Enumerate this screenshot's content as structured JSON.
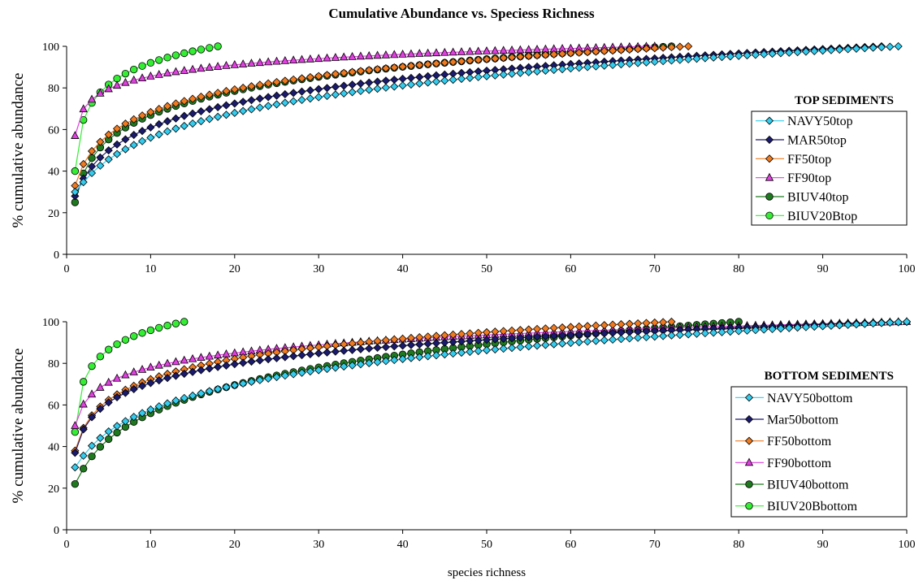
{
  "title": "Cumulative Abundance vs. Speciess Richness",
  "colors": {
    "navy": "#33ccee",
    "mar": "#1a1a6e",
    "ff50": "#f07a20",
    "ff90": "#e040e0",
    "biuv40": "#1f7a1f",
    "biuv20b": "#33ee33"
  },
  "chart_data": [
    {
      "type": "line",
      "panel": "top",
      "ylabel": "% cumulative abundance",
      "xlabel": "",
      "xlim": [
        0,
        100
      ],
      "ylim": [
        0,
        100
      ],
      "xticks": [
        0,
        10,
        20,
        30,
        40,
        50,
        60,
        70,
        80,
        90,
        100
      ],
      "yticks": [
        0,
        20,
        40,
        60,
        80,
        100
      ],
      "legend_title": "TOP SEDIMENTS",
      "legend_position": "right",
      "series": [
        {
          "name": "NAVY50top",
          "color": "#33ccee",
          "marker": "diamond",
          "n": 99,
          "y1": 30,
          "k": 0.7,
          "c": 1
        },
        {
          "name": "MAR50top",
          "color": "#1a1a6e",
          "marker": "diamond",
          "n": 97,
          "y1": 28,
          "k": 0.88,
          "c": 1
        },
        {
          "name": "FF50top",
          "color": "#f07a20",
          "marker": "diamond",
          "n": 74,
          "y1": 33,
          "k": 0.98,
          "c": 1
        },
        {
          "name": "FF90top",
          "color": "#e040e0",
          "marker": "triangle",
          "n": 70,
          "y1": 57,
          "k": 1.5,
          "c": 1
        },
        {
          "name": "BIUV40top",
          "color": "#1f7a1f",
          "marker": "circle",
          "n": 72,
          "y1": 25,
          "k": 0.92,
          "c": 1.8
        },
        {
          "name": "BIUV20Btop",
          "color": "#33ee33",
          "marker": "circle",
          "n": 18,
          "y1": 40,
          "k": 1.6,
          "c": 1
        }
      ]
    },
    {
      "type": "line",
      "panel": "bottom",
      "ylabel": "% cumulative abundance",
      "xlabel": "species richness",
      "xlim": [
        0,
        100
      ],
      "ylim": [
        0,
        100
      ],
      "xticks": [
        0,
        10,
        20,
        30,
        40,
        50,
        60,
        70,
        80,
        90,
        100
      ],
      "yticks": [
        0,
        20,
        40,
        60,
        80,
        100
      ],
      "legend_title": "BOTTOM SEDIMENTS",
      "legend_position": "right",
      "series": [
        {
          "name": "NAVY50bottom",
          "color": "#33ccee",
          "marker": "diamond",
          "n": 100,
          "y1": 30,
          "k": 0.75,
          "c": 1
        },
        {
          "name": "Mar50bottom",
          "color": "#1a1a6e",
          "marker": "diamond",
          "n": 100,
          "y1": 37,
          "k": 1.1,
          "c": 1
        },
        {
          "name": "FF50bottom",
          "color": "#f07a20",
          "marker": "diamond",
          "n": 72,
          "y1": 38,
          "k": 1.05,
          "c": 1
        },
        {
          "name": "FF90bottom",
          "color": "#e040e0",
          "marker": "triangle",
          "n": 100,
          "y1": 50,
          "k": 1.2,
          "c": 1
        },
        {
          "name": "BIUV40bottom",
          "color": "#1f7a1f",
          "marker": "circle",
          "n": 80,
          "y1": 22,
          "k": 0.7,
          "c": 1.5
        },
        {
          "name": "BIUV20Bbottom",
          "color": "#33ee33",
          "marker": "circle",
          "n": 14,
          "y1": 47,
          "k": 1.7,
          "c": 1
        }
      ]
    }
  ]
}
